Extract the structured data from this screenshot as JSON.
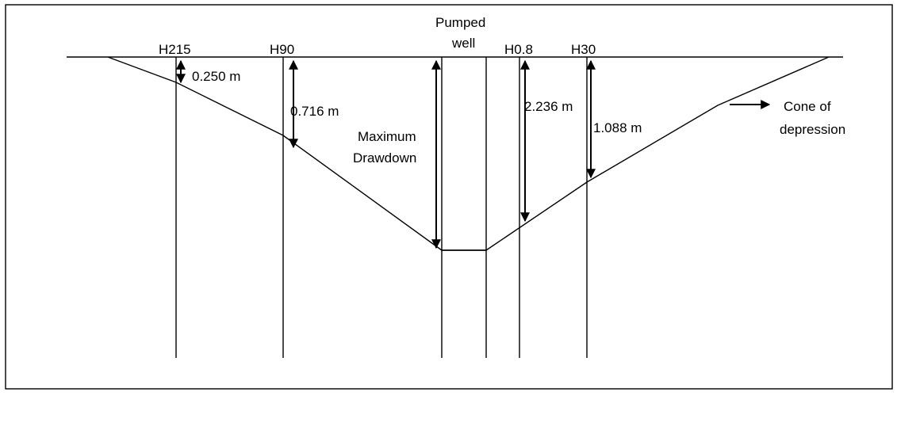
{
  "labels": {
    "well_top": "Pumped",
    "well_bottom": "well",
    "max_drawdown_line1": "Maximum",
    "max_drawdown_line2": "Drawdown",
    "cone_line1": "Cone of",
    "cone_line2": "depression"
  },
  "piezometers": [
    {
      "name": "H215",
      "drawdown": "0.250 m"
    },
    {
      "name": "H90",
      "drawdown": "0.716 m"
    },
    {
      "name": "H0.8",
      "drawdown": "2.236 m"
    },
    {
      "name": "H30",
      "drawdown": "1.088 m"
    }
  ],
  "colors": {
    "stroke": "#000000",
    "background": "#ffffff"
  }
}
